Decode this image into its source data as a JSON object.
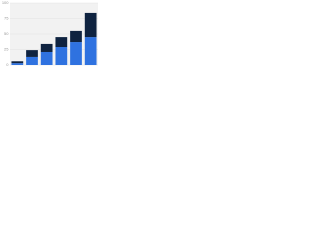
{
  "chart_data": {
    "type": "stacked-bar",
    "categories": [
      null,
      null,
      null,
      null,
      null,
      null
    ],
    "series": [
      {
        "color": "#2f72e0",
        "values": [
          3,
          13,
          21,
          29,
          37,
          45
        ]
      },
      {
        "color": "#0f2340",
        "values": [
          3,
          11,
          13,
          16,
          18,
          39
        ]
      }
    ],
    "ylim": [
      0,
      100
    ],
    "yticks": [
      0,
      25,
      50,
      75,
      100
    ],
    "grid": true
  }
}
